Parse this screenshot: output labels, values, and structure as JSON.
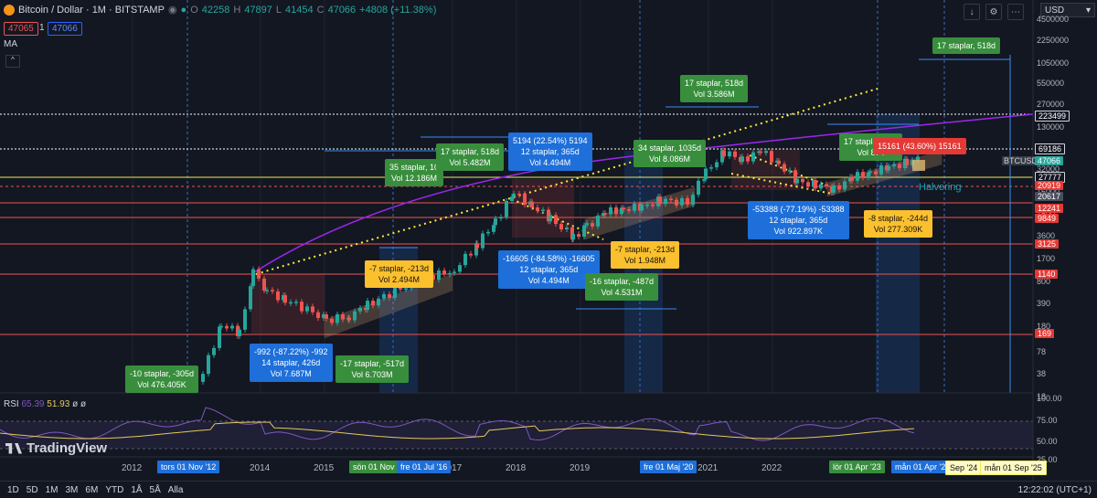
{
  "header": {
    "symbol": "Bitcoin / Dollar · 1M · BITSTAMP",
    "ohlc": [
      {
        "k": "O",
        "v": "42258"
      },
      {
        "k": "H",
        "v": "47897"
      },
      {
        "k": "L",
        "v": "41454"
      },
      {
        "k": "C",
        "v": "47066"
      }
    ],
    "change": "+4808 (+11.38%)",
    "bid": "47065",
    "spread": "1",
    "ask": "47066",
    "ma_label": "MA"
  },
  "currency": "USD",
  "price_axis": [
    {
      "label": "4500000",
      "price": 4500000
    },
    {
      "label": "2250000",
      "price": 2250000
    },
    {
      "label": "1050000",
      "price": 1050000
    },
    {
      "label": "550000",
      "price": 550000
    },
    {
      "label": "270000",
      "price": 270000
    },
    {
      "label": "130000",
      "price": 130000
    },
    {
      "label": "65000",
      "price": 65000
    },
    {
      "label": "32000",
      "price": 32000
    },
    {
      "label": "15000",
      "price": 15000
    },
    {
      "label": "7500",
      "price": 7500
    },
    {
      "label": "3600",
      "price": 3600
    },
    {
      "label": "1700",
      "price": 1700
    },
    {
      "label": "800",
      "price": 800
    },
    {
      "label": "390",
      "price": 390
    },
    {
      "label": "180",
      "price": 180
    },
    {
      "label": "78",
      "price": 78
    },
    {
      "label": "38",
      "price": 38
    },
    {
      "label": "18",
      "price": 18
    }
  ],
  "price_tags": [
    {
      "label": "223499",
      "price": 223499,
      "color": "#131722"
    },
    {
      "label": "69186",
      "price": 69186,
      "color": "#131722"
    },
    {
      "label": "27777",
      "price": 27777,
      "color": "#131722"
    },
    {
      "label": "20919",
      "price": 20919,
      "color": "#e53935"
    },
    {
      "label": "20617",
      "price": 20617,
      "color": "#4a4e5a"
    },
    {
      "label": "12241",
      "price": 12241,
      "color": "#e53935"
    },
    {
      "label": "9849",
      "price": 9849,
      "color": "#e53935"
    },
    {
      "label": "3125",
      "price": 3125,
      "color": "#e53935"
    },
    {
      "label": "1140",
      "price": 1140,
      "color": "#e53935"
    },
    {
      "label": "169",
      "price": 169,
      "color": "#e53935"
    }
  ],
  "current_price": {
    "label": "47066",
    "symbol": "BTCUSD",
    "price": 47066
  },
  "time_axis": [
    "2012",
    "2014",
    "2015",
    "2017",
    "2018",
    "2019",
    "2021",
    "2022"
  ],
  "time_tags": [
    {
      "label": "tors 01 Nov '12",
      "color": "#1e6fd9"
    },
    {
      "label": "sön 01 Nov '15",
      "color": "#388e3c"
    },
    {
      "label": "fre 01 Jul '16",
      "color": "#1e6fd9"
    },
    {
      "label": "fre 01 Maj '20",
      "color": "#1e6fd9"
    },
    {
      "label": "lör 01 Apr '23",
      "color": "#388e3c"
    },
    {
      "label": "mån 01 Apr '24",
      "color": "#1e6fd9"
    },
    {
      "label": "Sep '24",
      "color": "#fff9c4"
    },
    {
      "label": "mån 01 Sep '25",
      "color": "#fff9c4"
    }
  ],
  "annotations": [
    {
      "text": "-10 staplar, -305d\nVol 476.405K",
      "style": "ng"
    },
    {
      "text": "-992 (-87.22%) -992\n14 staplar, 426d\nVol 7.687M",
      "style": "nb"
    },
    {
      "text": "-17 staplar, -517d\nVol 6.703M",
      "style": "ng"
    },
    {
      "text": "-7 staplar, -213d\nVol 2.494M",
      "style": "ny"
    },
    {
      "text": "35 staplar, 10\nVol 12.186M",
      "style": "ng"
    },
    {
      "text": "17 staplar, 518d\nVol 5.482M",
      "style": "ng"
    },
    {
      "text": "5194 (22.54%) 5194\n12 staplar, 365d\nVol 4.494M",
      "style": "nb"
    },
    {
      "text": "-16605 (-84.58%) -16605\n12 staplar, 365d\nVol 4.494M",
      "style": "nb"
    },
    {
      "text": "-16 staplar, -487d\nVol 4.531M",
      "style": "ng"
    },
    {
      "text": "-7 staplar, -213d\nVol 1.948M",
      "style": "ny"
    },
    {
      "text": "34 staplar, 1035d\nVol 8.086M",
      "style": "ng"
    },
    {
      "text": "17 staplar, 518d\nVol 3.586M",
      "style": "ng"
    },
    {
      "text": "-53388 (-77.19%) -53388\n12 staplar, 365d\nVol 922.897K",
      "style": "nb"
    },
    {
      "text": "-8 staplar, -244d\nVol 277.309K",
      "style": "ny"
    },
    {
      "text": "17 staplar, 517\nVol 874",
      "style": "ng"
    },
    {
      "text": "15161 (43.60%) 15161",
      "style": "nr"
    },
    {
      "text": "17 staplar, 518d",
      "style": "ng"
    }
  ],
  "halvering_label": "Halvering",
  "rsi": {
    "label": "RSI",
    "value1": "65.39",
    "value2": "51.93",
    "value3": "ø",
    "value4": "ø",
    "axis": [
      "100.00",
      "75.00",
      "50.00",
      "25.00"
    ],
    "colors": {
      "rsi": "#7e57c2",
      "ma": "#e4c95c"
    }
  },
  "branding": "TradingView",
  "footer": {
    "ranges": [
      "1D",
      "5D",
      "1M",
      "3M",
      "6M",
      "YTD",
      "1Å",
      "5Å",
      "Alla"
    ],
    "time": "12:22:02 (UTC+1)"
  },
  "colors": {
    "up": "#26a69a",
    "down": "#ef5350",
    "bg": "#131722",
    "purple": "#9c27f0",
    "dotted": "#ffeb3b"
  }
}
